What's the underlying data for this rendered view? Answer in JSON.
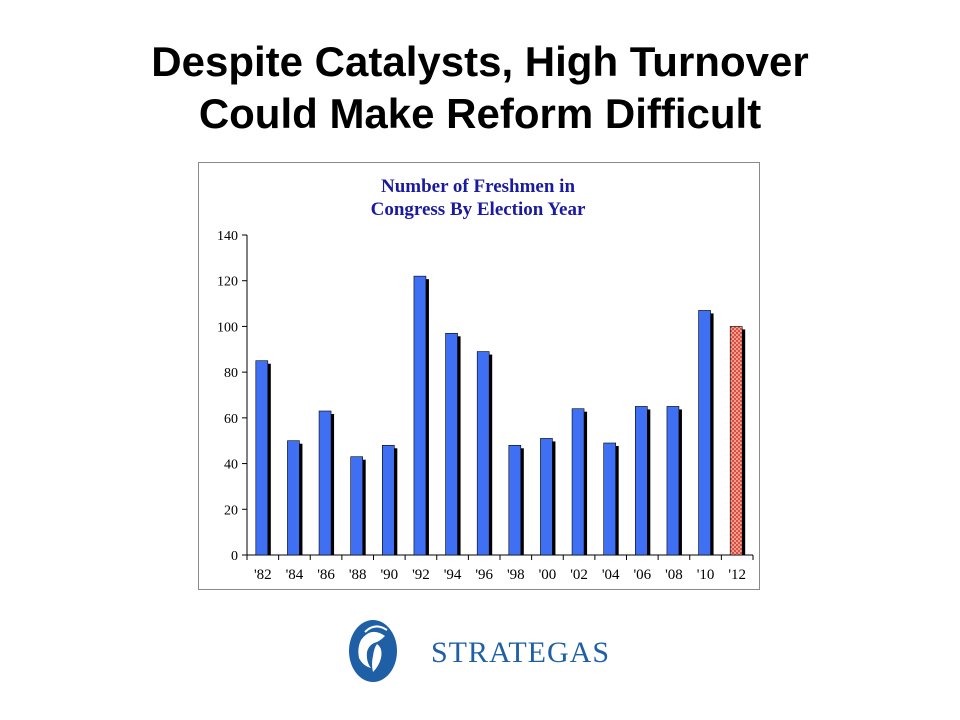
{
  "slide": {
    "title_line1": "Despite Catalysts, High Turnover",
    "title_line2": "Could Make Reform Difficult"
  },
  "chart_data": {
    "type": "bar",
    "title": "Number of Freshmen in Congress By Election Year",
    "title_lines": [
      "Number of Freshmen in",
      "Congress By Election Year"
    ],
    "categories": [
      "'82",
      "'84",
      "'86",
      "'88",
      "'90",
      "'92",
      "'94",
      "'96",
      "'98",
      "'00",
      "'02",
      "'04",
      "'06",
      "'08",
      "'10",
      "'12"
    ],
    "series": [
      {
        "values": [
          85,
          50,
          63,
          43,
          48,
          122,
          97,
          89,
          48,
          51,
          64,
          49,
          65,
          65,
          107,
          100
        ]
      }
    ],
    "highlight_index": 15,
    "ylim": [
      0,
      140
    ],
    "yticks": [
      0,
      20,
      40,
      60,
      80,
      100,
      120,
      140
    ],
    "xlabel": "",
    "ylabel": "",
    "grid": false,
    "colors": {
      "bar": "#3f6ff2",
      "bar_shadow": "#000000",
      "highlight": "#f0b4a8",
      "highlight_pattern": "#d93a2a",
      "title": "#1a1aa0"
    }
  },
  "logo": {
    "text": "STRATEGAS",
    "icon": "helmeted-head-icon",
    "color": "#1f5fa6"
  }
}
